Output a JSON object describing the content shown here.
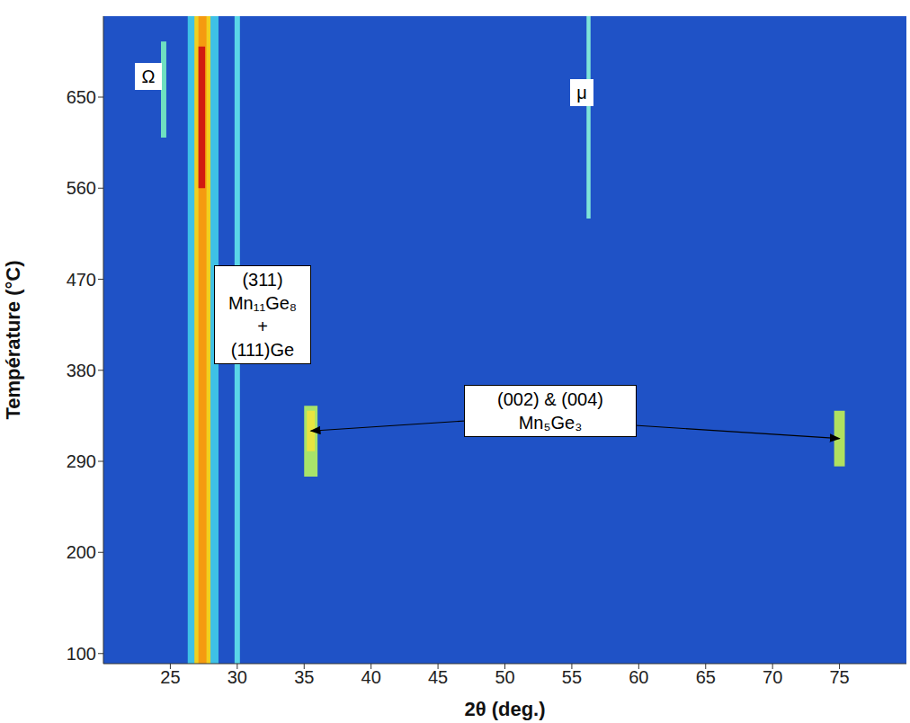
{
  "chart_data": {
    "type": "heatmap",
    "xlabel": "2θ (deg.)",
    "ylabel": "Température (°C)",
    "xlim": [
      20,
      80
    ],
    "xticks": [
      25,
      30,
      35,
      40,
      45,
      50,
      55,
      60,
      65,
      70,
      75
    ],
    "ylim": [
      90,
      730
    ],
    "yticks": [
      100,
      200,
      290,
      380,
      470,
      560,
      650
    ],
    "color": "#1f52c6",
    "peaks": [
      {
        "x_range": [
          26.3,
          28.6
        ],
        "t_range": [
          90,
          730
        ],
        "color": "#3ec1e6"
      },
      {
        "x_range": [
          26.8,
          28.0
        ],
        "t_range": [
          90,
          730
        ],
        "color": "#f0d020"
      },
      {
        "x_range": [
          27.1,
          27.7
        ],
        "t_range": [
          90,
          730
        ],
        "color": "#f59a10"
      },
      {
        "x_range": [
          27.1,
          27.6
        ],
        "t_range": [
          560,
          700
        ],
        "color": "#d11a10"
      },
      {
        "x_range": [
          29.8,
          30.2
        ],
        "t_range": [
          90,
          730
        ],
        "color": "#5ad6e8"
      },
      {
        "x_range": [
          24.3,
          24.7
        ],
        "t_range": [
          610,
          705
        ],
        "color": "#6fe0c0"
      },
      {
        "x_range": [
          56.1,
          56.4
        ],
        "t_range": [
          530,
          730
        ],
        "color": "#7fe4d8"
      },
      {
        "x_range": [
          35.0,
          36.0
        ],
        "t_range": [
          275,
          345
        ],
        "color": "#a8e36a"
      },
      {
        "x_range": [
          35.2,
          35.8
        ],
        "t_range": [
          300,
          340
        ],
        "color": "#e8e440"
      },
      {
        "x_range": [
          74.6,
          75.4
        ],
        "t_range": [
          285,
          340
        ],
        "color": "#b0e060"
      }
    ],
    "annotations": [
      {
        "text": [
          "Ω"
        ]
      },
      {
        "text": [
          "μ"
        ]
      },
      {
        "text": [
          "(311)",
          "Mn₁₁Ge₈",
          "+",
          "(111)Ge"
        ]
      },
      {
        "text": [
          "(002) & (004)",
          "Mn₅Ge₃"
        ]
      }
    ]
  }
}
